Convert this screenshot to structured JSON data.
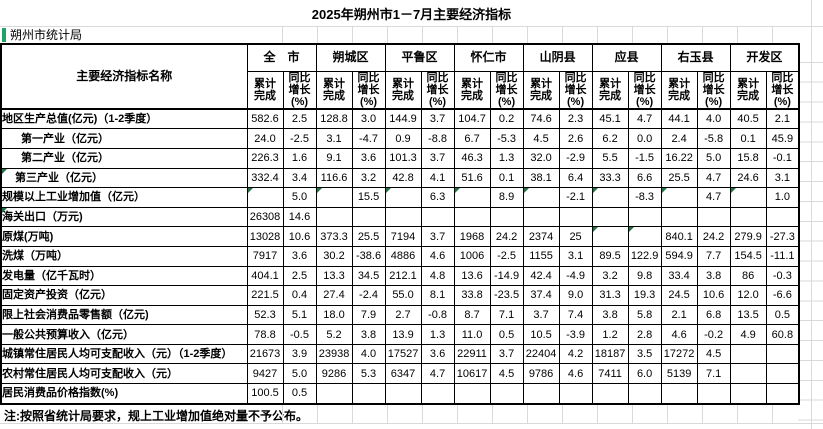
{
  "title": "2025年朔州市1－7月主要经济指标",
  "agency": "朔州市统计局",
  "note": "注:按照省统计局要求，规上工业增加值绝对量不予公布。",
  "colors": {
    "triangle": "#217346",
    "accent_bar": "#21a366",
    "grid": "#d9d9d9",
    "border": "#000000"
  },
  "table": {
    "indicator_header": "主要经济指标名称",
    "sub_headers": {
      "cum": "累计\n完成",
      "yoy": "同比\n增长\n(%)"
    },
    "regions": [
      "全　市",
      "朔城区",
      "平鲁区",
      "怀仁市",
      "山阴县",
      "应县",
      "右玉县",
      "开发区"
    ],
    "rows": [
      {
        "label": "地区生产总值(亿元)（1-2季度）",
        "indent": 0,
        "label_flag": false,
        "flags": [],
        "values": [
          "582.6",
          "2.5",
          "128.8",
          "3.0",
          "144.9",
          "3.7",
          "104.7",
          "0.2",
          "74.6",
          "2.3",
          "45.1",
          "4.7",
          "44.1",
          "4.0",
          "40.5",
          "2.1"
        ]
      },
      {
        "label": "第一产业（亿元）",
        "indent": 2,
        "label_flag": false,
        "flags": [],
        "values": [
          "24.0",
          "-2.5",
          "3.1",
          "-4.7",
          "0.9",
          "-8.8",
          "6.7",
          "-5.3",
          "4.5",
          "2.6",
          "6.2",
          "0.0",
          "2.4",
          "-5.8",
          "0.1",
          "45.9"
        ]
      },
      {
        "label": "第二产业（亿元）",
        "indent": 2,
        "label_flag": false,
        "flags": [],
        "values": [
          "226.3",
          "1.6",
          "9.1",
          "3.6",
          "101.3",
          "3.7",
          "46.3",
          "1.3",
          "32.0",
          "-2.9",
          "5.5",
          "-1.5",
          "16.22",
          "5.0",
          "15.8",
          "-0.1"
        ]
      },
      {
        "label": "第三产业（亿元）",
        "indent": 1,
        "label_flag": true,
        "flags": [],
        "values": [
          "332.4",
          "3.4",
          "116.6",
          "3.2",
          "42.8",
          "4.1",
          "51.6",
          "0.1",
          "38.1",
          "6.4",
          "33.3",
          "6.6",
          "25.5",
          "4.7",
          "24.6",
          "3.1"
        ]
      },
      {
        "label": "规模以上工业增加值（亿元）",
        "indent": 0,
        "label_flag": false,
        "flags": [
          0,
          2,
          4,
          6,
          8,
          10,
          12,
          14
        ],
        "values": [
          "",
          "5.0",
          "",
          "15.5",
          "",
          "6.3",
          "",
          "8.9",
          "",
          "-2.1",
          "",
          "-8.3",
          "",
          "4.7",
          "",
          "1.0"
        ]
      },
      {
        "label": "海关出口（万元)",
        "indent": 0,
        "label_flag": true,
        "flags": [],
        "values": [
          "26308",
          "14.6",
          "",
          "",
          "",
          "",
          "",
          "",
          "",
          "",
          "",
          "",
          "",
          "",
          "",
          ""
        ]
      },
      {
        "label": "原煤(万吨)",
        "indent": 0,
        "label_flag": false,
        "flags": [
          10,
          11
        ],
        "values": [
          "13028",
          "10.6",
          "373.3",
          "25.5",
          "7194",
          "3.7",
          "1968",
          "24.2",
          "2374",
          "25",
          "",
          "",
          "840.1",
          "24.2",
          "279.9",
          "-27.3"
        ]
      },
      {
        "label": "洗煤（万吨）",
        "indent": 0,
        "label_flag": false,
        "flags": [],
        "values": [
          "7917",
          "3.6",
          "30.2",
          "-38.6",
          "4886",
          "4.6",
          "1006",
          "-2.5",
          "1155",
          "3.1",
          "89.5",
          "122.9",
          "594.9",
          "7.7",
          "154.5",
          "-11.1"
        ]
      },
      {
        "label": "发电量（亿千瓦时）",
        "indent": 0,
        "label_flag": false,
        "flags": [],
        "values": [
          "404.1",
          "2.5",
          "13.3",
          "34.5",
          "212.1",
          "4.8",
          "13.6",
          "-14.9",
          "42.4",
          "-4.9",
          "3.2",
          "9.8",
          "33.4",
          "3.8",
          "86",
          "-0.3"
        ]
      },
      {
        "label": "固定资产投资（亿元）",
        "indent": 0,
        "label_flag": false,
        "flags": [],
        "values": [
          "221.5",
          "0.4",
          "27.4",
          "-2.4",
          "55.0",
          "8.1",
          "33.8",
          "-23.5",
          "37.4",
          "9.0",
          "31.3",
          "19.3",
          "24.5",
          "10.6",
          "12.0",
          "-6.6"
        ]
      },
      {
        "label": "限上社会消费品零售额（亿元)",
        "indent": 0,
        "label_flag": false,
        "flags": [],
        "values": [
          "52.3",
          "5.1",
          "18.0",
          "7.9",
          "2.7",
          "-0.8",
          "8.7",
          "7.1",
          "3.7",
          "7.4",
          "3.8",
          "5.8",
          "2.1",
          "6.8",
          "13.5",
          "0.5"
        ]
      },
      {
        "label": "一般公共预算收入（亿元）",
        "indent": 0,
        "label_flag": false,
        "flags": [],
        "values": [
          "78.8",
          "-0.5",
          "5.2",
          "3.8",
          "13.9",
          "1.3",
          "11.0",
          "0.5",
          "10.5",
          "-3.9",
          "1.2",
          "2.8",
          "4.6",
          "-0.2",
          "4.9",
          "60.8"
        ]
      },
      {
        "label": "城镇常住居民人均可支配收入（元）（1-2季度）",
        "indent": 0,
        "label_flag": false,
        "flags": [],
        "values": [
          "21673",
          "3.9",
          "23938",
          "4.0",
          "17527",
          "3.6",
          "22911",
          "3.7",
          "22404",
          "4.2",
          "18187",
          "3.5",
          "17272",
          "4.5",
          "",
          ""
        ]
      },
      {
        "label": "农村常住居民人均可支配收入（元）",
        "indent": 0,
        "label_flag": false,
        "flags": [],
        "values": [
          "9427",
          "5.0",
          "9286",
          "5.3",
          "6347",
          "4.7",
          "10617",
          "4.5",
          "9786",
          "4.6",
          "7411",
          "6.0",
          "5139",
          "7.1",
          "",
          ""
        ]
      },
      {
        "label": "居民消费品价格指数(%)",
        "indent": 0,
        "label_flag": false,
        "flags": [],
        "values": [
          "100.5",
          "0.5",
          "",
          "",
          "",
          "",
          "",
          "",
          "",
          "",
          "",
          "",
          "",
          "",
          "",
          ""
        ]
      }
    ]
  }
}
